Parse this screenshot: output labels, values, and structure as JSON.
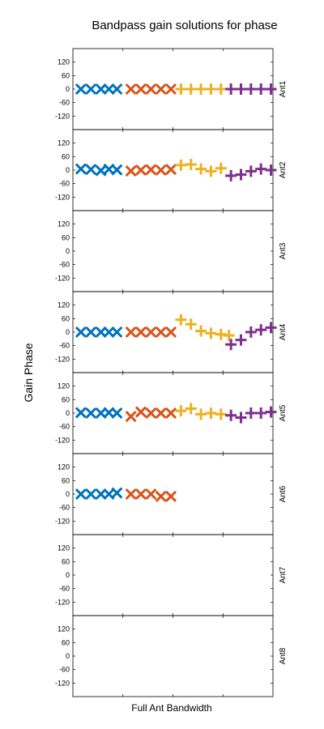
{
  "chart_data": {
    "type": "scatter",
    "title": "Bandpass gain solutions for phase",
    "xlabel": "Full Ant Bandwidth",
    "ylabel": "Gain Phase",
    "ylim": [
      -180,
      180
    ],
    "yticks": [
      120,
      60,
      0,
      -60,
      -120
    ],
    "grid": false,
    "x_divisions": [
      0.25,
      0.5,
      0.75
    ],
    "series_colors": [
      "#0072BD",
      "#D95319",
      "#EDB120",
      "#7E2F8E"
    ],
    "series_markers": [
      "x",
      "x",
      "+",
      "+"
    ],
    "panels": [
      {
        "label": "Ant1",
        "series": [
          {
            "x": [
              0.04,
              0.09,
              0.14,
              0.18,
              0.22
            ],
            "values": [
              0,
              0,
              0,
              0,
              0
            ]
          },
          {
            "x": [
              0.29,
              0.34,
              0.39,
              0.44,
              0.49
            ],
            "values": [
              0,
              0,
              0,
              0,
              0
            ]
          },
          {
            "x": [
              0.54,
              0.59,
              0.64,
              0.69,
              0.74
            ],
            "values": [
              0,
              0,
              0,
              0,
              0
            ]
          },
          {
            "x": [
              0.79,
              0.84,
              0.89,
              0.94,
              0.99
            ],
            "values": [
              0,
              0,
              0,
              0,
              0
            ]
          }
        ]
      },
      {
        "label": "Ant2",
        "series": [
          {
            "x": [
              0.04,
              0.09,
              0.14,
              0.18,
              0.22
            ],
            "values": [
              5,
              3,
              -2,
              4,
              1
            ]
          },
          {
            "x": [
              0.29,
              0.34,
              0.39,
              0.44,
              0.49
            ],
            "values": [
              -4,
              0,
              2,
              0,
              3
            ]
          },
          {
            "x": [
              0.54,
              0.59,
              0.64,
              0.69,
              0.74
            ],
            "values": [
              22,
              25,
              5,
              -5,
              8
            ]
          },
          {
            "x": [
              0.79,
              0.84,
              0.89,
              0.94,
              0.99
            ],
            "values": [
              -25,
              -20,
              -5,
              5,
              0
            ]
          }
        ]
      },
      {
        "label": "Ant3",
        "series": []
      },
      {
        "label": "Ant4",
        "series": [
          {
            "x": [
              0.04,
              0.09,
              0.14,
              0.18,
              0.22
            ],
            "values": [
              0,
              0,
              0,
              0,
              0
            ]
          },
          {
            "x": [
              0.29,
              0.34,
              0.39,
              0.44,
              0.49
            ],
            "values": [
              0,
              0,
              0,
              0,
              0
            ]
          },
          {
            "x": [
              0.54,
              0.59,
              0.64,
              0.69,
              0.74,
              0.78
            ],
            "values": [
              55,
              35,
              5,
              -5,
              -10,
              -15
            ]
          },
          {
            "x": [
              0.79,
              0.84,
              0.89,
              0.94,
              0.99
            ],
            "values": [
              -55,
              -35,
              0,
              10,
              20
            ]
          }
        ]
      },
      {
        "label": "Ant5",
        "series": [
          {
            "x": [
              0.04,
              0.09,
              0.14,
              0.18,
              0.22
            ],
            "values": [
              2,
              0,
              0,
              2,
              0
            ]
          },
          {
            "x": [
              0.29,
              0.34,
              0.39,
              0.44,
              0.49
            ],
            "values": [
              -15,
              5,
              0,
              0,
              0
            ]
          },
          {
            "x": [
              0.54,
              0.59,
              0.64,
              0.69,
              0.74
            ],
            "values": [
              10,
              20,
              -5,
              0,
              -5
            ]
          },
          {
            "x": [
              0.79,
              0.84,
              0.89,
              0.94,
              0.99
            ],
            "values": [
              -10,
              -20,
              0,
              0,
              5
            ]
          }
        ]
      },
      {
        "label": "Ant6",
        "series": [
          {
            "x": [
              0.04,
              0.09,
              0.14,
              0.18,
              0.22
            ],
            "values": [
              0,
              0,
              0,
              0,
              5
            ]
          },
          {
            "x": [
              0.29,
              0.34,
              0.39,
              0.44,
              0.49
            ],
            "values": [
              0,
              0,
              0,
              -10,
              -10
            ]
          },
          {
            "x": [],
            "values": []
          },
          {
            "x": [],
            "values": []
          }
        ]
      },
      {
        "label": "Ant7",
        "series": []
      },
      {
        "label": "Ant8",
        "series": []
      }
    ]
  }
}
